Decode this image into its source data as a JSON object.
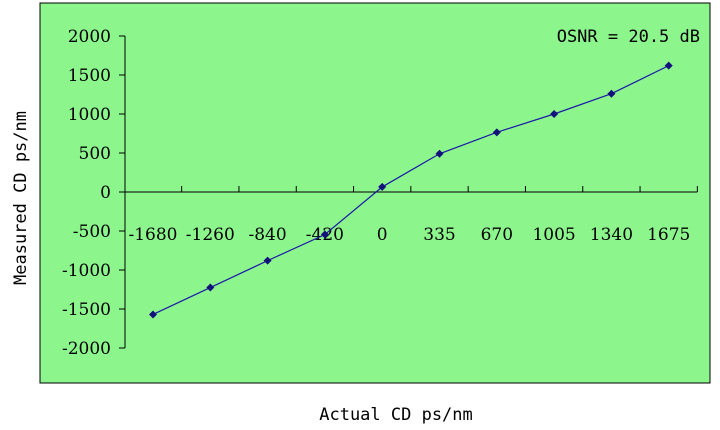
{
  "chart_data": {
    "type": "line",
    "title": "",
    "xlabel": "Actual CD   ps/nm",
    "ylabel": "Measured CD   ps/nm",
    "annotation": "OSNR = 20.5 dB",
    "categories": [
      "-1680",
      "-1260",
      "-840",
      "-420",
      "0",
      "335",
      "670",
      "1005",
      "1340",
      "1675"
    ],
    "series": [
      {
        "values": [
          -1570,
          -1225,
          -880,
          -545,
          65,
          490,
          765,
          1000,
          1260,
          1620
        ]
      }
    ],
    "ylim": [
      -2000,
      2000
    ],
    "yticks": [
      -2000,
      -1500,
      -1000,
      -500,
      0,
      500,
      1000,
      1500,
      2000
    ],
    "grid": false,
    "legend": "none",
    "colors": {
      "plot_background": "#8cf58c",
      "line": "#1a1aa8",
      "marker": "#12127a",
      "axis": "#000000"
    },
    "marker": "diamond-icon"
  }
}
